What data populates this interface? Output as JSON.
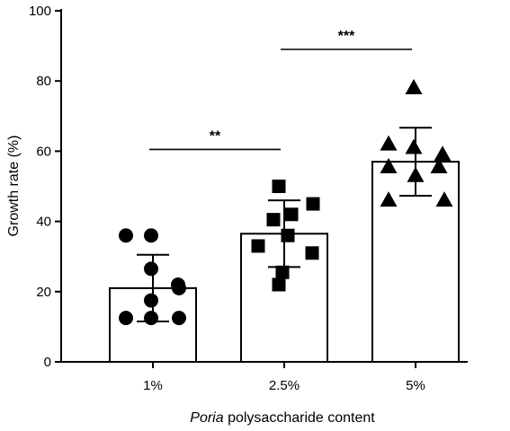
{
  "chart_data": {
    "type": "bar",
    "ylabel": "Growth rate (%)",
    "xlabel_italic": "Poria",
    "xlabel_rest": " polysaccharide content",
    "ylim": [
      0,
      100
    ],
    "yticks": [
      0,
      20,
      40,
      60,
      80,
      100
    ],
    "categories": [
      "1%",
      "2.5%",
      "5%"
    ],
    "markers": [
      "circle",
      "square",
      "triangle"
    ],
    "means": [
      21,
      36.5,
      57
    ],
    "errors": [
      9.5,
      9.5,
      9.7
    ],
    "points": [
      [
        36,
        36,
        26.5,
        22,
        21,
        17.5,
        12.5,
        12.5,
        12.5
      ],
      [
        50,
        45,
        42,
        40.5,
        36,
        33,
        31,
        25.5,
        22
      ],
      [
        78,
        62,
        61,
        59,
        55.5,
        55.5,
        53,
        46,
        46
      ]
    ],
    "significance": [
      {
        "from": 0,
        "to": 1,
        "y": 60.5,
        "label": "**"
      },
      {
        "from": 1,
        "to": 2,
        "y": 89,
        "label": "***"
      }
    ],
    "colors": {
      "axis": "#000000",
      "bar_fill": "#ffffff",
      "marker": "#000000"
    }
  }
}
